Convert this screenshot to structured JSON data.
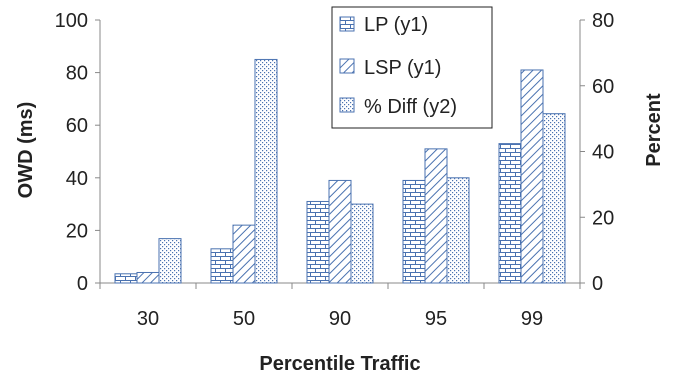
{
  "chart_data": {
    "type": "bar",
    "categories": [
      "30",
      "50",
      "90",
      "95",
      "99"
    ],
    "xlabel": "Percentile Traffic",
    "ylabel": "OWD (ms)",
    "y2label": "Percent",
    "ylim": [
      0,
      100
    ],
    "y2lim": [
      0,
      80
    ],
    "yticks": [
      0,
      20,
      40,
      60,
      80,
      100
    ],
    "y2ticks": [
      0,
      20,
      40,
      60,
      80
    ],
    "grid": false,
    "legend_position": "top-center",
    "series": [
      {
        "name": "LP (y1)",
        "axis": "y1",
        "pattern": "brick",
        "values": [
          3.5,
          13,
          31,
          39,
          53
        ]
      },
      {
        "name": "LSP (y1)",
        "axis": "y1",
        "pattern": "diagonal",
        "values": [
          4,
          22,
          39,
          51,
          81
        ]
      },
      {
        "name": "% Diff (y2)",
        "axis": "y2",
        "pattern": "dots",
        "values": [
          13.5,
          68,
          24,
          32,
          51.5
        ]
      }
    ],
    "colors": {
      "bar_stroke": "#4a72b0",
      "pattern": "#4a72b0",
      "axis": "#888888"
    }
  }
}
